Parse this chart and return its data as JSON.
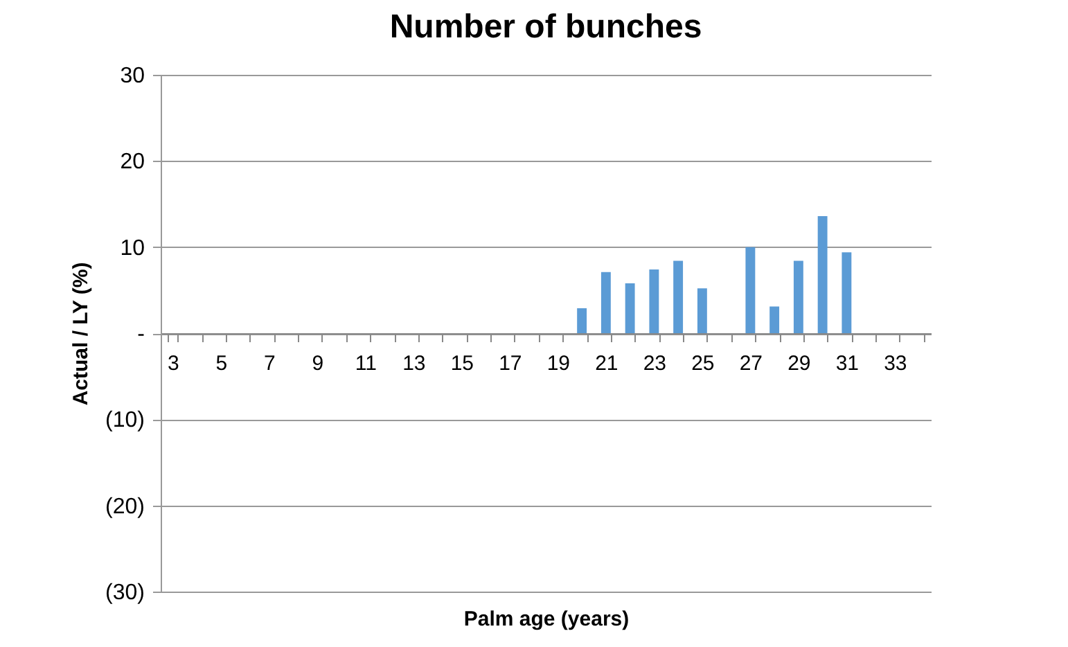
{
  "chart_data": {
    "type": "bar",
    "title": "Number of bunches",
    "xlabel": "Palm age (years)",
    "ylabel": "Actual / LY (%)",
    "categories": [
      "3",
      null,
      "5",
      null,
      "7",
      null,
      "9",
      null,
      "11",
      null,
      "13",
      null,
      "15",
      null,
      "17",
      null,
      "19",
      null,
      "21",
      null,
      "23",
      null,
      "25",
      null,
      "27",
      null,
      "29",
      null,
      "31",
      null,
      "33",
      null
    ],
    "values": [
      null,
      null,
      null,
      null,
      null,
      null,
      null,
      null,
      null,
      null,
      null,
      null,
      null,
      null,
      null,
      null,
      null,
      2.9,
      7.1,
      5.8,
      7.4,
      8.4,
      5.2,
      null,
      10.0,
      3.1,
      8.4,
      13.6,
      9.4,
      null,
      null,
      null
    ],
    "color": "#5b9bd5",
    "ylim": [
      -30,
      30
    ],
    "yticks": [
      {
        "value": -30,
        "label": "(30)"
      },
      {
        "value": -20,
        "label": "(20)"
      },
      {
        "value": -10,
        "label": "(10)"
      },
      {
        "value": 0,
        "label": "-"
      },
      10,
      20,
      30
    ],
    "grid": "y"
  }
}
